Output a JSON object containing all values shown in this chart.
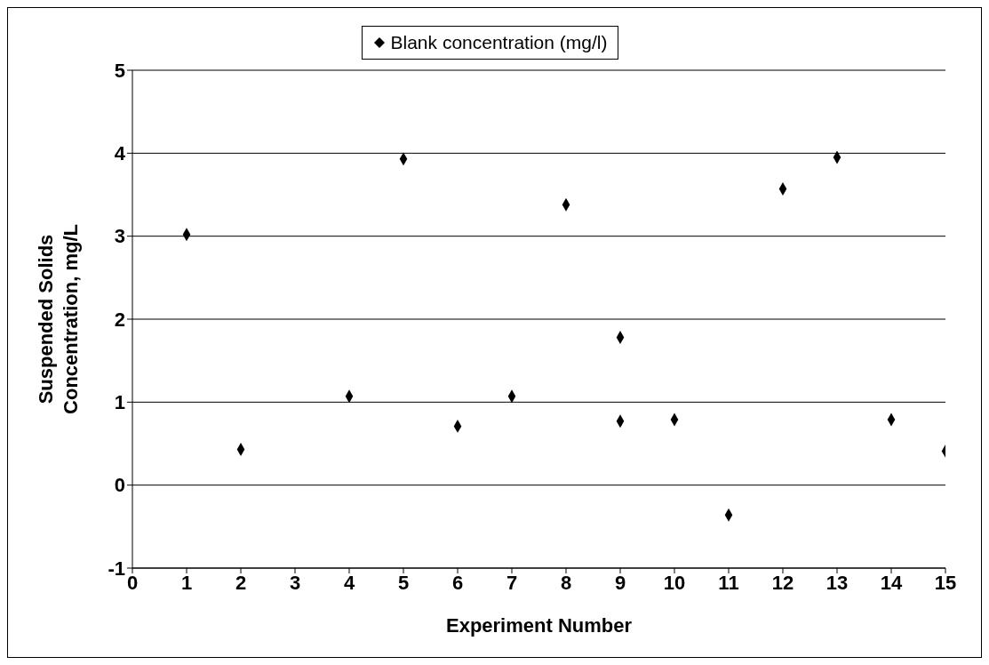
{
  "chart_data": {
    "type": "scatter",
    "xlabel": "Experiment Number",
    "ylabel": "Suspended Solids Concentration, mg/L",
    "x": [
      1,
      2,
      4,
      5,
      6,
      7,
      8,
      9,
      9,
      10,
      11,
      12,
      13,
      14,
      15
    ],
    "series": [
      {
        "name": "Blank concentration (mg/l)",
        "color": "#000000",
        "values": [
          3.02,
          0.43,
          1.07,
          3.93,
          0.71,
          1.07,
          3.38,
          1.78,
          0.77,
          0.79,
          -0.36,
          3.57,
          3.95,
          0.79,
          0.41
        ]
      }
    ],
    "xlim": [
      0,
      15
    ],
    "xticks": [
      0,
      1,
      2,
      3,
      4,
      5,
      6,
      7,
      8,
      9,
      10,
      11,
      12,
      13,
      14,
      15
    ],
    "ylim": [
      -1,
      5
    ],
    "yticks": [
      -1,
      0,
      1,
      2,
      3,
      4,
      5
    ],
    "grid": "y",
    "legend": "top",
    "marker": "diamond"
  }
}
